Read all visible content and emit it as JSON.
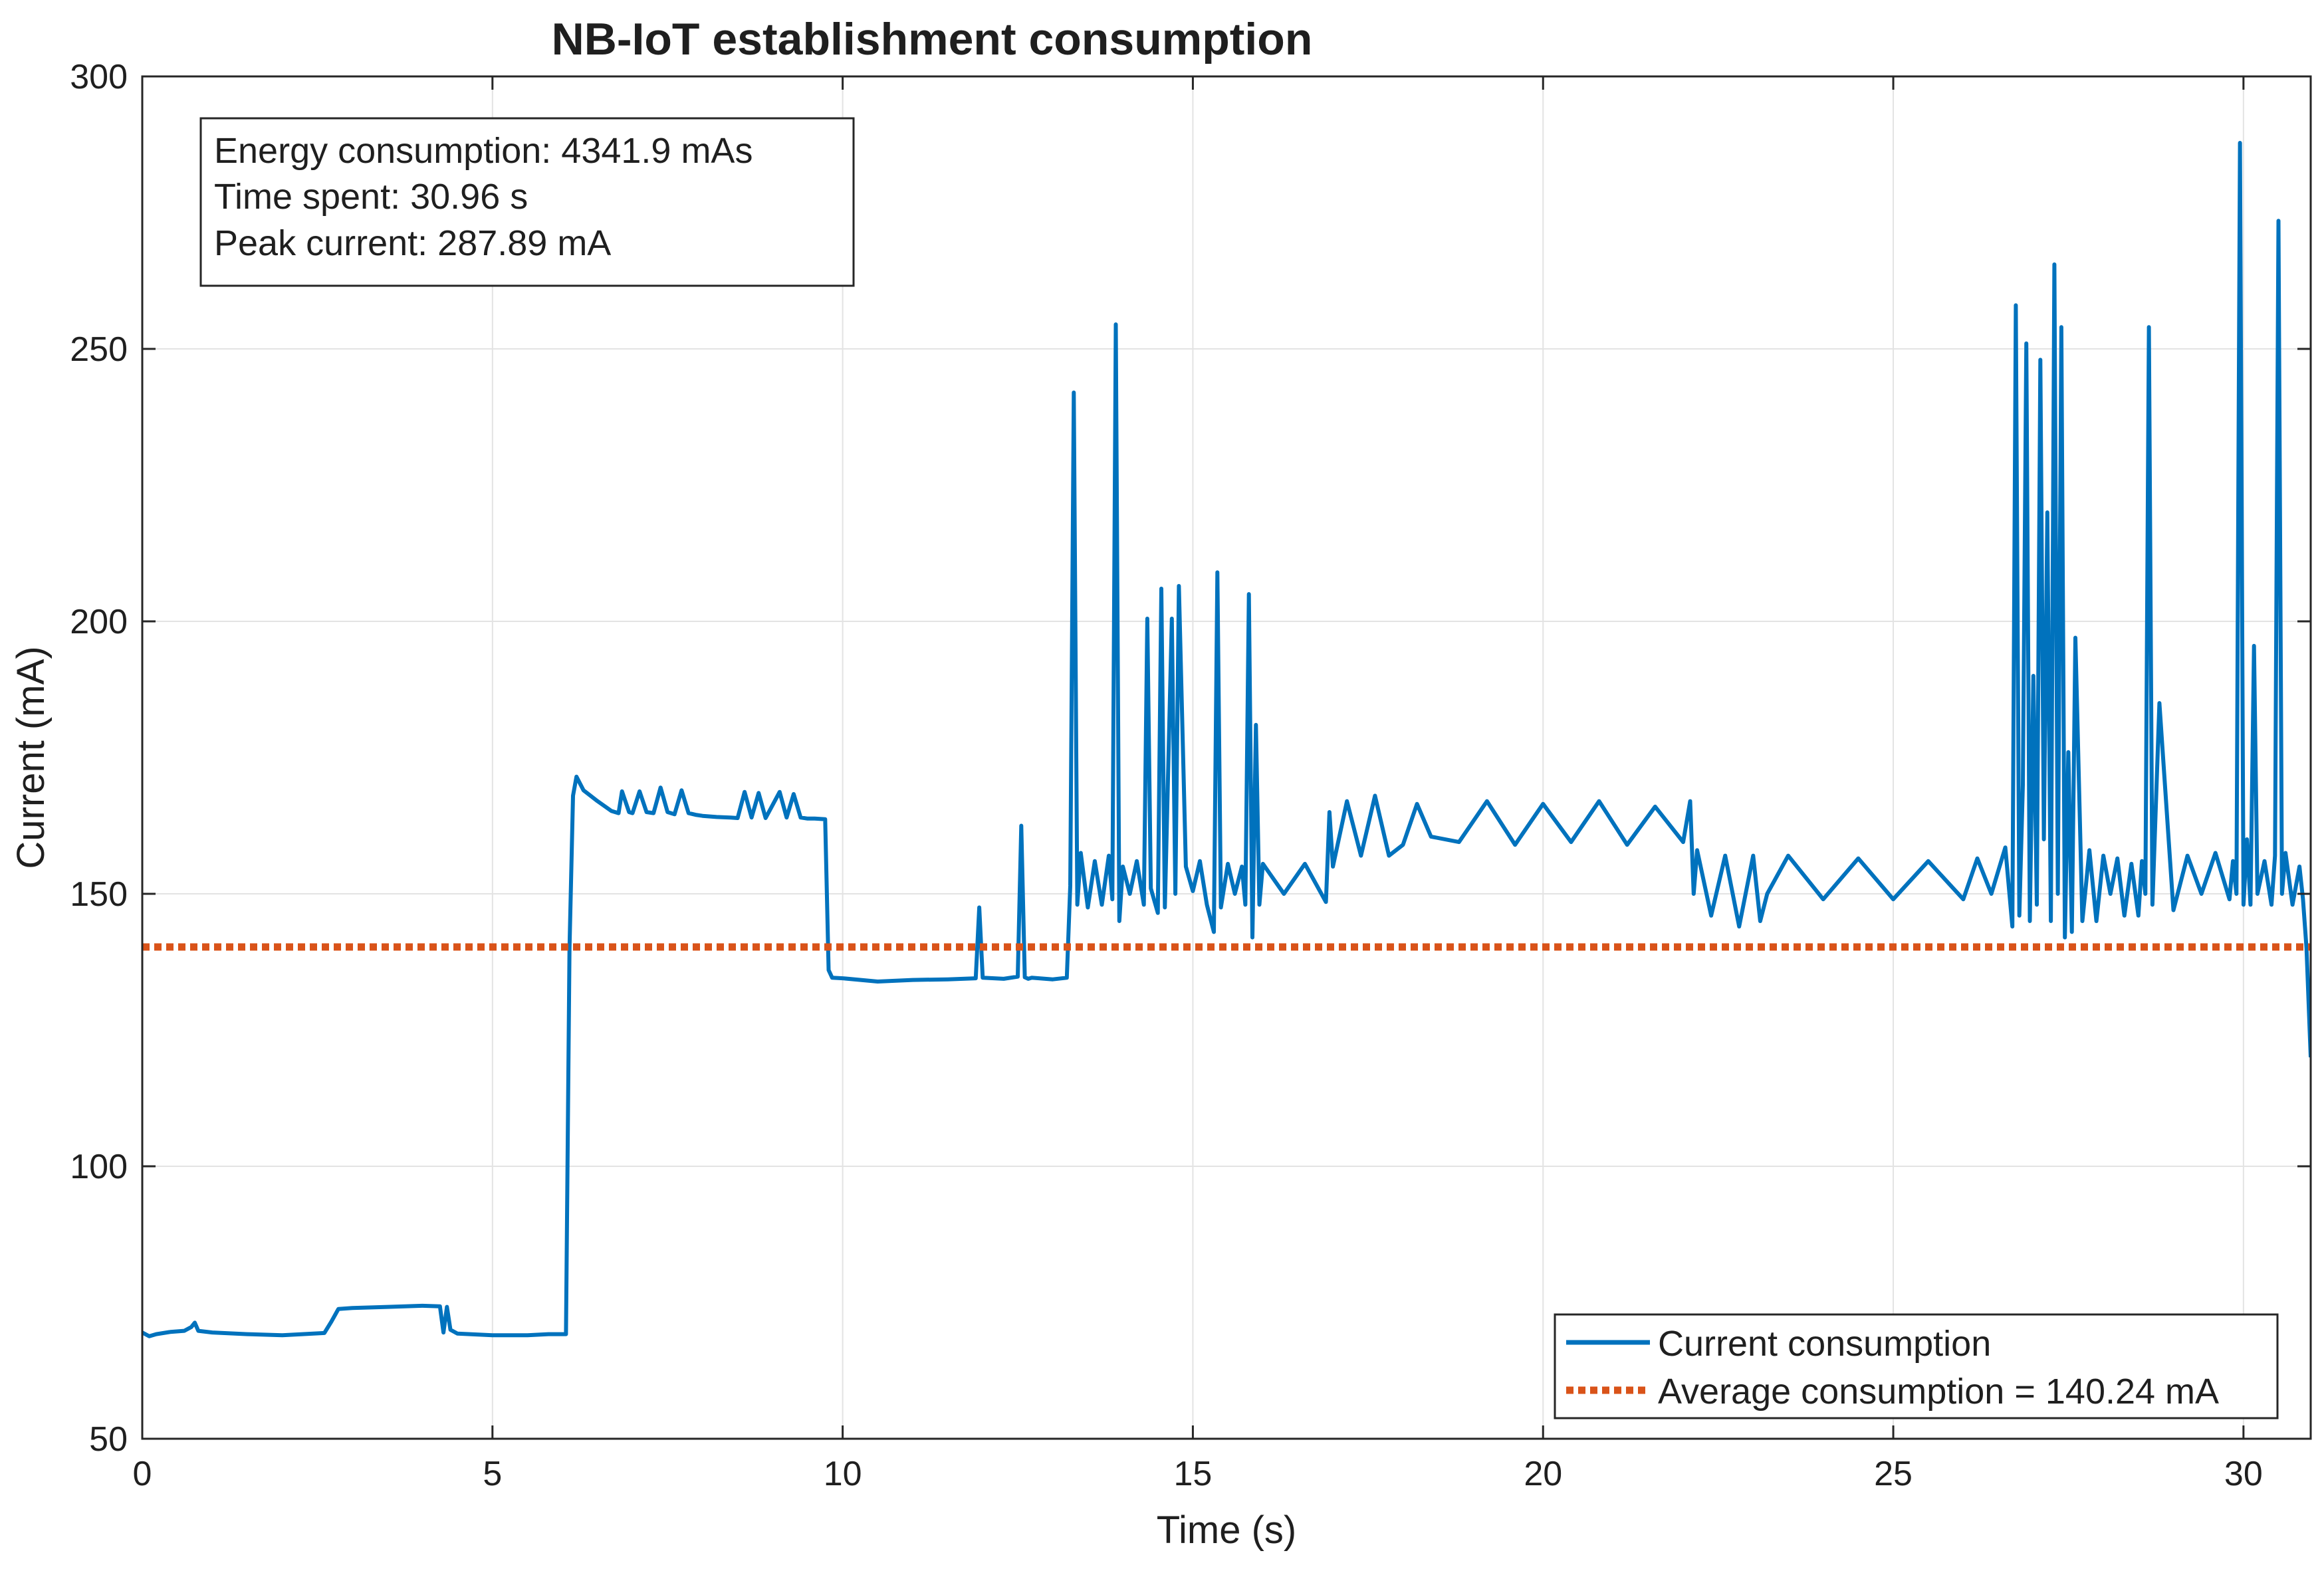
{
  "chart_data": {
    "type": "line",
    "title": "NB-IoT establishment consumption",
    "xlabel": "Time (s)",
    "ylabel": "Current (mA)",
    "xlim": [
      0,
      30.96
    ],
    "ylim": [
      50,
      300
    ],
    "grid": true,
    "xticks": [
      0,
      5,
      10,
      15,
      20,
      25,
      30
    ],
    "yticks": [
      50,
      100,
      150,
      200,
      250,
      300
    ],
    "xtick_labels": [
      "0",
      "5",
      "10",
      "15",
      "20",
      "25",
      "30"
    ],
    "ytick_labels": [
      "50",
      "100",
      "150",
      "200",
      "250",
      "300"
    ],
    "info_box": [
      "Energy consumption: 4341.9 mAs",
      "Time spent: 30.96 s",
      "Peak current: 287.89 mA"
    ],
    "legend_position": "bottom-right",
    "series": [
      {
        "name": "Current consumption",
        "color": "#0072BD",
        "style": "solid",
        "x": [
          0,
          0.1,
          0.2,
          0.4,
          0.6,
          0.7,
          0.75,
          0.8,
          1.0,
          1.5,
          2.0,
          2.6,
          2.7,
          2.8,
          3.0,
          3.5,
          4.0,
          4.25,
          4.3,
          4.35,
          4.4,
          4.5,
          5.0,
          5.5,
          5.8,
          6.05,
          6.1,
          6.15,
          6.2,
          6.3,
          6.5,
          6.7,
          6.8,
          6.85,
          6.95,
          7.0,
          7.1,
          7.2,
          7.3,
          7.4,
          7.5,
          7.6,
          7.7,
          7.8,
          7.9,
          8.0,
          8.2,
          8.4,
          8.5,
          8.6,
          8.7,
          8.8,
          8.9,
          9.1,
          9.2,
          9.3,
          9.4,
          9.5,
          9.6,
          9.75,
          9.8,
          9.85,
          10.0,
          10.5,
          11.0,
          11.5,
          11.9,
          11.95,
          12.0,
          12.3,
          12.5,
          12.55,
          12.6,
          12.65,
          12.7,
          13.0,
          13.2,
          13.25,
          13.3,
          13.35,
          13.4,
          13.5,
          13.6,
          13.7,
          13.8,
          13.85,
          13.9,
          13.95,
          14.0,
          14.1,
          14.2,
          14.3,
          14.35,
          14.4,
          14.5,
          14.55,
          14.6,
          14.7,
          14.75,
          14.8,
          14.9,
          15.0,
          15.1,
          15.2,
          15.3,
          15.35,
          15.4,
          15.5,
          15.6,
          15.7,
          15.75,
          15.8,
          15.85,
          15.9,
          15.95,
          16.0,
          16.3,
          16.6,
          16.9,
          16.95,
          17.0,
          17.2,
          17.4,
          17.6,
          17.8,
          18.0,
          18.2,
          18.4,
          18.8,
          19.2,
          19.6,
          20.0,
          20.4,
          20.8,
          21.2,
          21.6,
          22.0,
          22.1,
          22.15,
          22.2,
          22.4,
          22.6,
          22.8,
          23.0,
          23.1,
          23.2,
          23.5,
          24.0,
          24.5,
          25.0,
          25.5,
          26.0,
          26.2,
          26.4,
          26.6,
          26.7,
          26.75,
          26.8,
          26.85,
          26.9,
          26.95,
          27.0,
          27.05,
          27.1,
          27.15,
          27.2,
          27.25,
          27.3,
          27.35,
          27.4,
          27.45,
          27.5,
          27.55,
          27.6,
          27.7,
          27.8,
          27.9,
          28.0,
          28.1,
          28.2,
          28.3,
          28.4,
          28.5,
          28.55,
          28.6,
          28.65,
          28.7,
          28.8,
          29.0,
          29.2,
          29.4,
          29.6,
          29.8,
          29.85,
          29.9,
          29.95,
          30.0,
          30.05,
          30.1,
          30.15,
          30.2,
          30.3,
          30.4,
          30.45,
          30.5,
          30.55,
          30.6,
          30.7,
          30.8,
          30.85,
          30.9,
          30.96
        ],
        "y": [
          69.5,
          68.8,
          69.2,
          69.6,
          69.8,
          70.5,
          71.3,
          69.8,
          69.5,
          69.2,
          69.0,
          69.4,
          71.5,
          73.8,
          74.0,
          74.2,
          74.4,
          74.3,
          69.5,
          74.2,
          70.0,
          69.3,
          69.0,
          69.0,
          69.2,
          69.2,
          140.0,
          168.0,
          171.5,
          169.0,
          167.0,
          165.2,
          164.8,
          168.8,
          165.0,
          164.8,
          168.8,
          165.0,
          164.8,
          169.5,
          165.0,
          164.6,
          169.0,
          164.8,
          164.5,
          164.3,
          164.1,
          164.0,
          163.9,
          168.7,
          164.0,
          168.5,
          163.9,
          168.7,
          164.0,
          168.3,
          164.0,
          163.8,
          163.8,
          163.7,
          136.0,
          134.6,
          134.5,
          133.9,
          134.2,
          134.3,
          134.5,
          147.5,
          134.6,
          134.4,
          134.8,
          162.5,
          134.7,
          134.4,
          134.6,
          134.3,
          134.6,
          151.5,
          242.0,
          148.0,
          157.5,
          147.5,
          156.0,
          148.0,
          157.0,
          149.0,
          254.5,
          145.0,
          155.0,
          150.0,
          156.0,
          148.0,
          200.5,
          151.0,
          146.5,
          206.0,
          147.5,
          200.5,
          150.0,
          206.5,
          155.0,
          150.5,
          156.0,
          148.0,
          143.0,
          209.0,
          147.5,
          155.5,
          150.0,
          155.0,
          148.0,
          205.0,
          142.0,
          181.0,
          148.0,
          155.5,
          150.0,
          155.5,
          148.5,
          165.0,
          155.0,
          167.0,
          157.0,
          168.0,
          157.0,
          159.0,
          166.5,
          160.5,
          159.5,
          167.0,
          159.0,
          166.5,
          159.5,
          167.0,
          159.0,
          166.0,
          159.5,
          167.0,
          150.0,
          158.0,
          146.0,
          157.0,
          144.0,
          157.0,
          145.0,
          150.0,
          157.0,
          149.0,
          156.5,
          149.0,
          156.0,
          149.0,
          156.5,
          150.0,
          158.5,
          144.0,
          258.0,
          146.0,
          170.0,
          251.0,
          145.0,
          190.0,
          148.0,
          248.0,
          160.0,
          220.0,
          145.0,
          265.5,
          150.0,
          254.0,
          142.0,
          176.0,
          143.0,
          197.0,
          145.0,
          158.0,
          145.0,
          157.0,
          150.0,
          156.5,
          146.0,
          155.5,
          146.0,
          156.0,
          150.0,
          254.0,
          148.0,
          185.0,
          147.0,
          157.0,
          150.0,
          157.5,
          149.0,
          156.0,
          150.0,
          287.8,
          148.0,
          160.0,
          148.0,
          195.5,
          150.0,
          156.0,
          148.0,
          157.0,
          273.5,
          150.0,
          157.5,
          148.0,
          155.0,
          149.0,
          140.0,
          120.0
        ]
      },
      {
        "name": "Average consumption = 140.24 mA",
        "color": "#D95319",
        "style": "dotted",
        "x": [
          0,
          30.96
        ],
        "y": [
          140.24,
          140.24
        ]
      }
    ]
  }
}
